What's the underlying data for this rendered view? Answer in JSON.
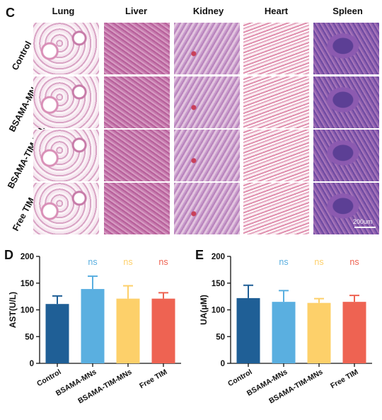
{
  "panel_c": {
    "letter": "C",
    "columns": [
      "Lung",
      "Liver",
      "Kidney",
      "Heart",
      "Spleen"
    ],
    "rows": [
      "Control",
      "BSAMA-MNs",
      "BSAMA-TIM-MNs",
      "Free TIM"
    ],
    "scale_bar": "200um"
  },
  "panel_d": {
    "letter": "D"
  },
  "panel_e": {
    "letter": "E"
  },
  "chart_data": [
    {
      "type": "bar",
      "ylabel": "AST(U/L)",
      "ylim": [
        0,
        200
      ],
      "yticks": [
        0,
        50,
        100,
        150,
        200
      ],
      "categories": [
        "Control",
        "BSAMA-MNs",
        "BSAMA-TIM-MNs",
        "Free TIM"
      ],
      "values": [
        111,
        139,
        121,
        121
      ],
      "errors": [
        15,
        24,
        24,
        11
      ],
      "annotations": [
        "",
        "ns",
        "ns",
        "ns"
      ],
      "colors": [
        "#1f5f96",
        "#5aafe0",
        "#fdd06a",
        "#ee6352"
      ]
    },
    {
      "type": "bar",
      "ylabel": "UA(μM)",
      "ylim": [
        0,
        200
      ],
      "yticks": [
        0,
        50,
        100,
        150,
        200
      ],
      "categories": [
        "Control",
        "BSAMA-MNs",
        "BSAMA-TIM-MNs",
        "Free TIM"
      ],
      "values": [
        122,
        115,
        113,
        115
      ],
      "errors": [
        24,
        21,
        8,
        12
      ],
      "annotations": [
        "",
        "ns",
        "ns",
        "ns"
      ],
      "colors": [
        "#1f5f96",
        "#5aafe0",
        "#fdd06a",
        "#ee6352"
      ]
    }
  ]
}
